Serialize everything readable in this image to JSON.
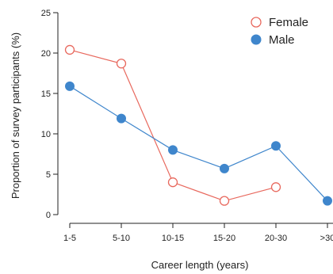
{
  "chart_data": {
    "type": "line",
    "categories": [
      "1-5",
      "5-10",
      "10-15",
      "15-20",
      "20-30",
      ">30"
    ],
    "series": [
      {
        "name": "Female",
        "values": [
          20.4,
          18.7,
          4.0,
          1.7,
          3.4,
          null
        ],
        "color": "#e8685d",
        "marker": "open-circle"
      },
      {
        "name": "Male",
        "values": [
          15.9,
          11.9,
          8.0,
          5.7,
          8.5,
          1.7
        ],
        "color": "#3f86cc",
        "marker": "filled-circle"
      }
    ],
    "xlabel": "Career length (years)",
    "ylabel": "Proportion of survey participants (%)",
    "ylim": [
      0,
      25
    ],
    "yticks": [
      0,
      5,
      10,
      15,
      20,
      25
    ],
    "grid": false,
    "legend_position": "top-right"
  }
}
